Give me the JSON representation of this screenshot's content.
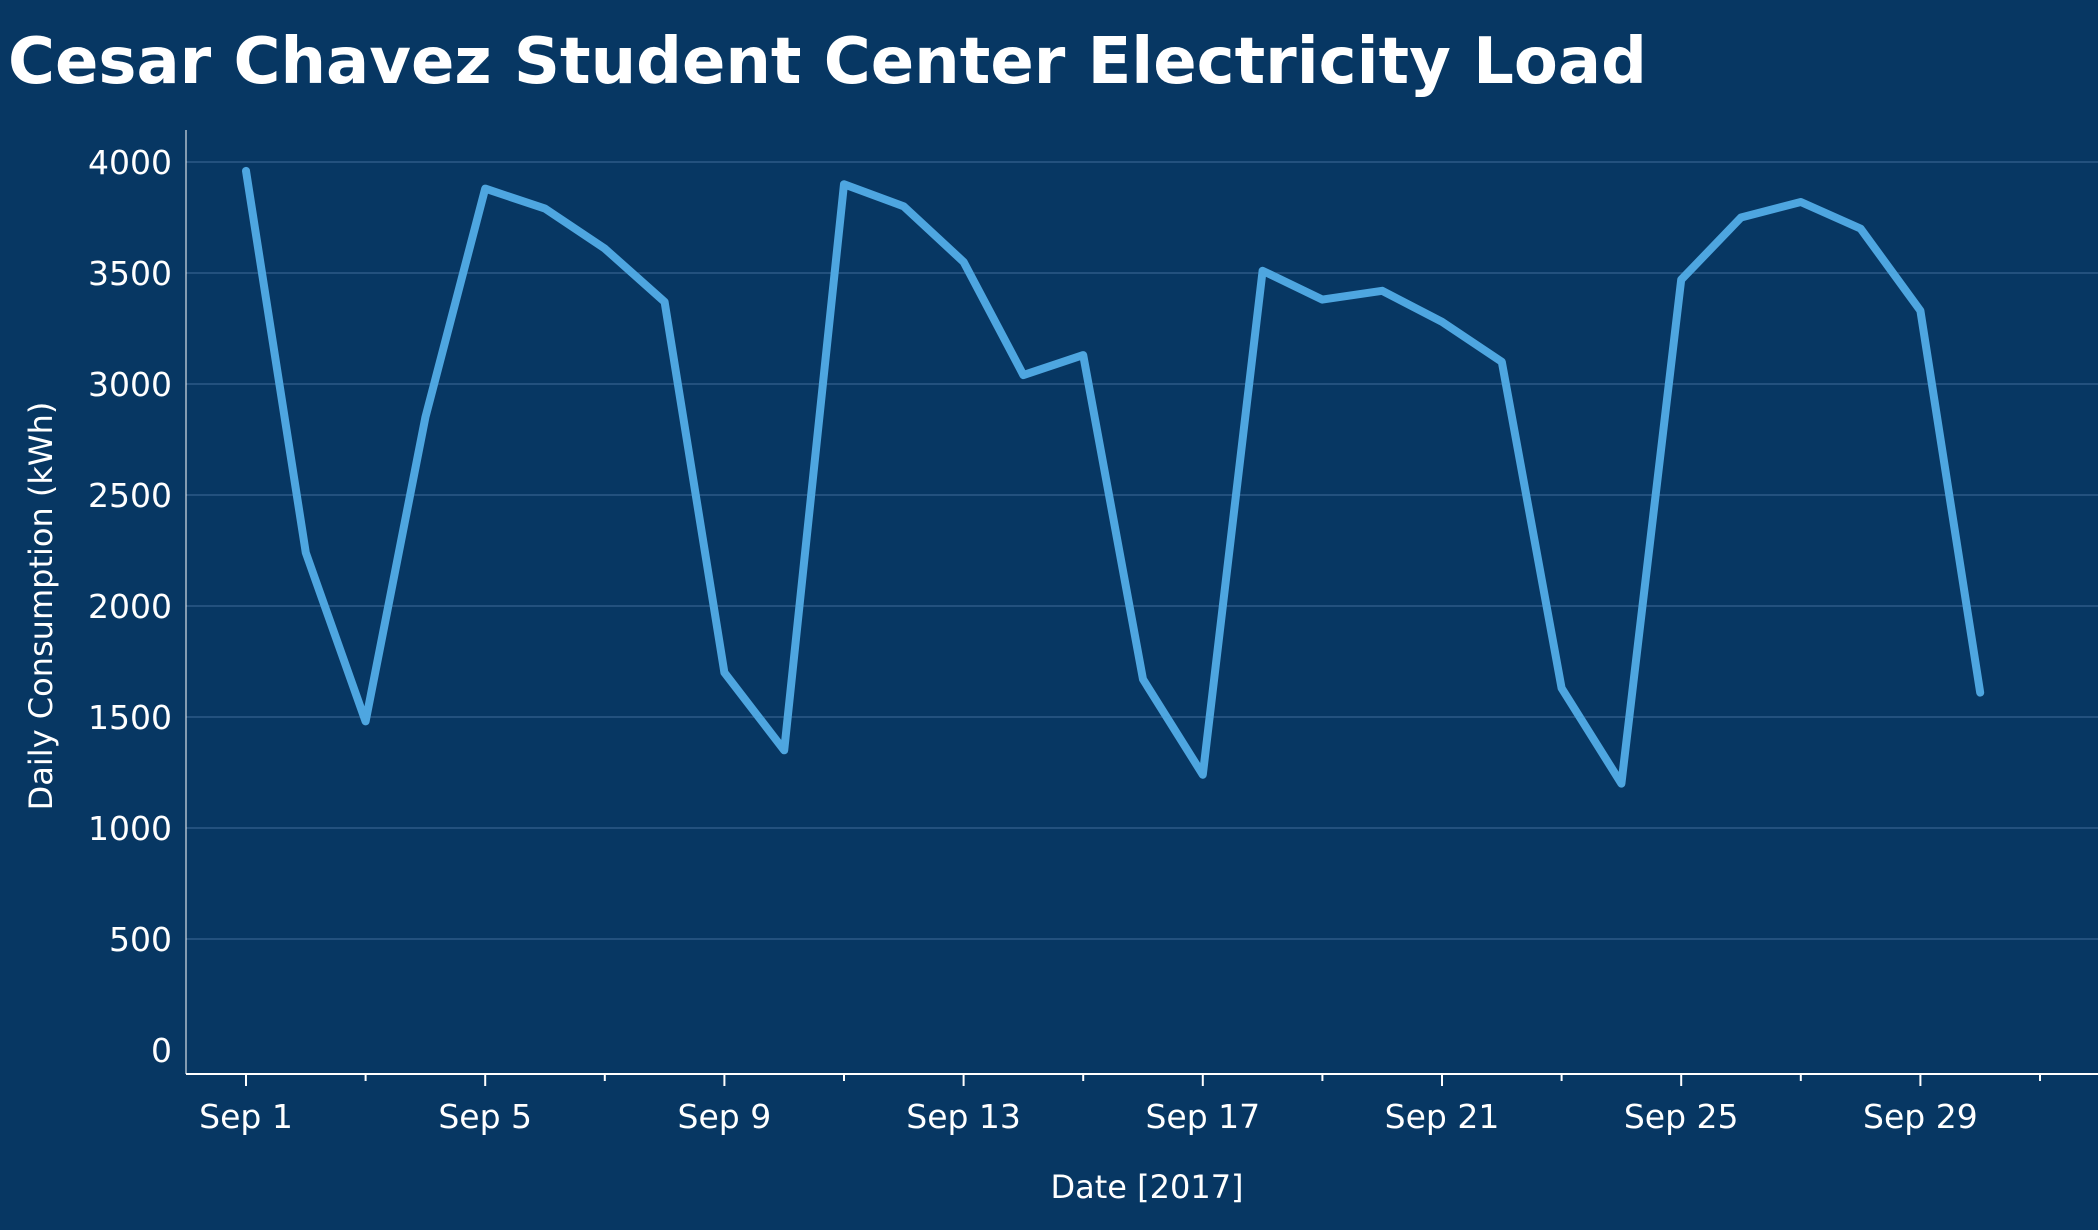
{
  "chart_data": {
    "type": "line",
    "title": "Cesar Chavez Student Center Electricity Load",
    "xlabel": "Date  [2017]",
    "ylabel": "Daily Consumption (kWh)",
    "ylim": [
      0,
      4200
    ],
    "yticks": [
      0,
      500,
      1000,
      1500,
      2000,
      2500,
      3000,
      3500,
      4000
    ],
    "xlim": [
      "2017-09-01",
      "2017-10-02"
    ],
    "xticks": [
      {
        "date": "2017-09-01",
        "label": "Sep 1"
      },
      {
        "date": "2017-09-05",
        "label": "Sep 5"
      },
      {
        "date": "2017-09-09",
        "label": "Sep 9"
      },
      {
        "date": "2017-09-13",
        "label": "Sep 13"
      },
      {
        "date": "2017-09-17",
        "label": "Sep 17"
      },
      {
        "date": "2017-09-21",
        "label": "Sep 21"
      },
      {
        "date": "2017-09-25",
        "label": "Sep 25"
      },
      {
        "date": "2017-09-29",
        "label": "Sep 29"
      }
    ],
    "grid": true,
    "line_color": "#4ea6e0",
    "background_color": "#073763",
    "series": [
      {
        "x": [
          "2017-09-01",
          "2017-09-02",
          "2017-09-03",
          "2017-09-04",
          "2017-09-05",
          "2017-09-06",
          "2017-09-07",
          "2017-09-08",
          "2017-09-09",
          "2017-09-10",
          "2017-09-11",
          "2017-09-12",
          "2017-09-13",
          "2017-09-14",
          "2017-09-15",
          "2017-09-16",
          "2017-09-17",
          "2017-09-18",
          "2017-09-19",
          "2017-09-20",
          "2017-09-21",
          "2017-09-22",
          "2017-09-23",
          "2017-09-24",
          "2017-09-25",
          "2017-09-26",
          "2017-09-27",
          "2017-09-28",
          "2017-09-29",
          "2017-09-30"
        ],
        "values": [
          3960,
          2240,
          1480,
          2850,
          3880,
          3790,
          3610,
          3370,
          1700,
          1350,
          3900,
          3800,
          3550,
          3040,
          3130,
          1670,
          1240,
          3510,
          3380,
          3420,
          3280,
          3100,
          1630,
          1200,
          3470,
          3750,
          3820,
          3700,
          3330,
          1610
        ]
      }
    ]
  }
}
